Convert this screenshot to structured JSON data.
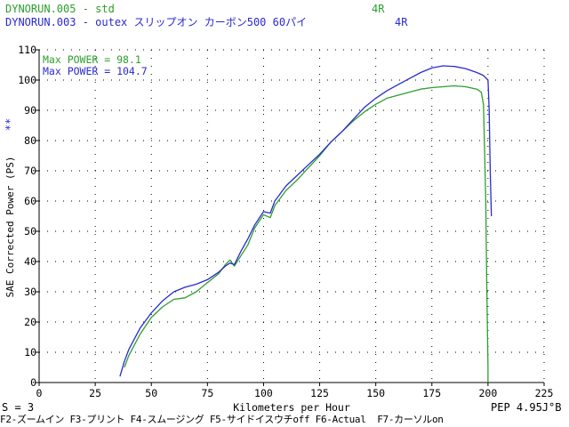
{
  "header": {
    "run1_name": "DYNORUN.005 - std",
    "run1_gear": "4R",
    "run2_name": "DYNORUN.003 - outex スリップオン カーボン500 60パイ",
    "run2_gear": "4R"
  },
  "side_marker": "**",
  "footer": {
    "smoothing": "S = 3",
    "pep": "PEP 4.95J°B",
    "function_keys": "F2-ズームイン F3-プリント F4-スムージング F5-サイドイスウチoff F6-Actual  F7-カーソルon"
  },
  "colors": {
    "run1": "#2e9e2e",
    "run2": "#2a2ad0",
    "axis": "#000000"
  },
  "chart_data": {
    "type": "line",
    "xlabel": "Kilometers per Hour",
    "ylabel": "SAE Corrected Power (PS)",
    "xlim": [
      0,
      225
    ],
    "ylim": [
      0,
      110
    ],
    "xticks": [
      0,
      25,
      50,
      75,
      100,
      125,
      150,
      175,
      200,
      225
    ],
    "yticks": [
      0,
      10,
      20,
      30,
      40,
      50,
      60,
      70,
      80,
      90,
      100,
      110
    ],
    "grid": "dotted",
    "annotations": [
      "Max POWER = 98.1",
      "Max POWER = 104.7"
    ],
    "series": [
      {
        "color": "#2e9e2e",
        "x": [
          38,
          40,
          45,
          50,
          55,
          60,
          65,
          70,
          75,
          80,
          83,
          85,
          87,
          90,
          93,
          96,
          100,
          103,
          105,
          110,
          115,
          120,
          125,
          130,
          135,
          140,
          145,
          150,
          155,
          160,
          165,
          170,
          175,
          180,
          185,
          190,
          195,
          197,
          198,
          199,
          199.5,
          200,
          200
        ],
        "y": [
          5,
          9,
          16,
          21.5,
          25,
          27.5,
          28,
          30,
          33,
          36,
          39,
          40.5,
          38.5,
          42,
          45.5,
          51,
          55.5,
          54.5,
          58.5,
          63.5,
          67,
          71,
          75,
          79.5,
          83,
          86.5,
          89.5,
          92,
          94,
          95,
          96,
          97,
          97.5,
          97.8,
          98.1,
          97.8,
          97,
          96,
          92,
          60,
          30,
          5,
          0
        ]
      },
      {
        "color": "#2a2ad0",
        "x": [
          36,
          38,
          40,
          45,
          50,
          55,
          60,
          65,
          70,
          75,
          80,
          83,
          85,
          87,
          90,
          93,
          96,
          100,
          103,
          105,
          110,
          115,
          120,
          125,
          130,
          135,
          140,
          145,
          150,
          155,
          160,
          165,
          170,
          175,
          180,
          185,
          190,
          195,
          198,
          200,
          200.5,
          201,
          201.5
        ],
        "y": [
          2,
          7,
          11,
          18,
          23,
          27,
          30,
          31.5,
          32.5,
          34,
          36.5,
          38.5,
          39.5,
          39,
          43.5,
          47.5,
          52,
          56.5,
          56,
          60,
          65,
          68.5,
          72,
          75.5,
          79.5,
          83,
          87,
          91,
          94,
          96.5,
          98.5,
          100.5,
          102.5,
          104,
          104.7,
          104.5,
          103.8,
          102.5,
          101.5,
          100,
          90,
          70,
          55
        ]
      }
    ]
  }
}
